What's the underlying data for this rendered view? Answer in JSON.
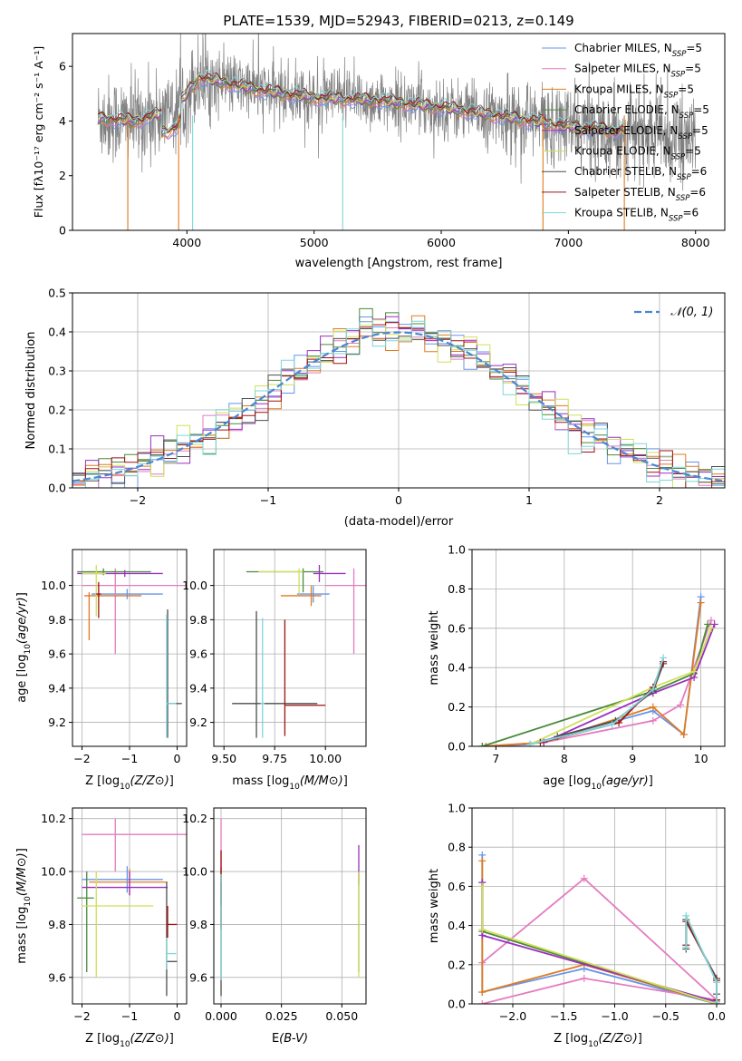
{
  "title": "PLATE=1539, MJD=52943, FIBERID=0213, z=0.149",
  "colors": {
    "Chabrier MILES": "#6495ed",
    "Salpeter MILES": "#e37cc0",
    "Kroupa MILES": "#e07b1f",
    "Chabrier ELODIE": "#4a8a3a",
    "Salpeter ELODIE": "#9a2fc0",
    "Kroupa ELODIE": "#cfe05a",
    "Chabrier STELIB": "#4d4d4d",
    "Salpeter STELIB": "#a01010",
    "Kroupa STELIB": "#7fd6d8",
    "gauss": "#4a86d6"
  },
  "chart_data": [
    {
      "id": "spectrum",
      "type": "line",
      "xlabel": "wavelength [Angstrom, rest frame]",
      "ylabel": "Flux [fλ10⁻¹⁷ erg cm⁻² s⁻¹ A⁻¹]",
      "xlim": [
        3100,
        8230
      ],
      "ylim": [
        0,
        7.2
      ],
      "xticks": [
        4000,
        5000,
        6000,
        7000,
        8000
      ],
      "yticks": [
        0,
        2,
        4,
        6
      ],
      "legend_position": "right",
      "legend": [
        {
          "label": "Chabrier MILES, N",
          "sub": "SSP",
          "suffix": "=5"
        },
        {
          "label": "Salpeter MILES, N",
          "sub": "SSP",
          "suffix": "=5"
        },
        {
          "label": "Kroupa MILES, N",
          "sub": "SSP",
          "suffix": "=5"
        },
        {
          "label": "Chabrier ELODIE, N",
          "sub": "SSP",
          "suffix": "=5"
        },
        {
          "label": "Salpeter ELODIE, N",
          "sub": "SSP",
          "suffix": "=5"
        },
        {
          "label": "Kroupa ELODIE, N",
          "sub": "SSP",
          "suffix": "=5"
        },
        {
          "label": "Chabrier STELIB, N",
          "sub": "SSP",
          "suffix": "=6"
        },
        {
          "label": "Salpeter STELIB, N",
          "sub": "SSP",
          "suffix": "=6"
        },
        {
          "label": "Kroupa STELIB, N",
          "sub": "SSP",
          "suffix": "=6"
        }
      ],
      "continuum_anchors": {
        "x": [
          3300,
          3600,
          3900,
          4100,
          4300,
          4600,
          5000,
          5500,
          6000,
          6500,
          7000,
          7500,
          8000
        ],
        "y": [
          4.1,
          4.0,
          4.4,
          5.6,
          5.4,
          5.1,
          4.85,
          4.75,
          4.5,
          4.15,
          3.8,
          3.6,
          3.35
        ]
      },
      "data_range": [
        3300,
        8000
      ],
      "model_range": [
        3300,
        7450
      ]
    },
    {
      "id": "residuals",
      "type": "histogram",
      "xlabel": "(data-model)/error",
      "ylabel": "Normed distribution",
      "xlim": [
        -2.5,
        2.5
      ],
      "ylim": [
        0,
        0.5
      ],
      "xticks": [
        -2,
        -1,
        0,
        1,
        2
      ],
      "yticks": [
        0,
        0.1,
        0.2,
        0.3,
        0.4,
        0.5
      ],
      "bin_width": 0.1,
      "series_name": "𝒩(0, 1)",
      "legend_position": "top-right"
    },
    {
      "id": "age_vs_Z",
      "type": "errorbar",
      "xlabel": "Z [log10(Z/Z⊙)]",
      "ylabel": "age  [log10(age/yr)]",
      "xlim": [
        -2.2,
        0.2
      ],
      "ylim": [
        9.06,
        10.21
      ],
      "xticks": [
        -2,
        -1,
        0
      ],
      "yticks": [
        9.2,
        9.4,
        9.6,
        9.8,
        10.0
      ],
      "points": [
        {
          "model": "Chabrier MILES",
          "x": -1.05,
          "xerr": [
            0.75,
            0.75
          ],
          "y": 9.95,
          "yerr": [
            0.03,
            0.03
          ]
        },
        {
          "model": "Salpeter MILES",
          "x": -1.3,
          "xerr": [
            0.7,
            1.5
          ],
          "y": 10.0,
          "yerr": [
            0.4,
            0.1
          ]
        },
        {
          "model": "Kroupa MILES",
          "x": -1.85,
          "xerr": [
            0.1,
            1.1
          ],
          "y": 9.94,
          "yerr": [
            0.26,
            0.02
          ]
        },
        {
          "model": "Chabrier ELODIE",
          "x": -1.55,
          "xerr": [
            0.55,
            1.0
          ],
          "y": 10.08,
          "yerr": [
            0.02,
            0.02
          ]
        },
        {
          "model": "Salpeter ELODIE",
          "x": -1.1,
          "xerr": [
            1.0,
            0.8
          ],
          "y": 10.07,
          "yerr": [
            0.02,
            0.02
          ]
        },
        {
          "model": "Kroupa ELODIE",
          "x": -1.7,
          "xerr": [
            0.3,
            0.2
          ],
          "y": 10.07,
          "yerr": [
            0.25,
            0.05
          ]
        },
        {
          "model": "Chabrier STELIB",
          "x": -0.2,
          "xerr": [
            0.0,
            0.3
          ],
          "y": 9.31,
          "yerr": [
            0.2,
            0.55
          ]
        },
        {
          "model": "Salpeter STELIB",
          "x": -1.65,
          "xerr": [
            0.05,
            0.05
          ],
          "y": 9.95,
          "yerr": [
            0.14,
            0.07
          ]
        },
        {
          "model": "Kroupa STELIB",
          "x": -0.22,
          "xerr": [
            0.0,
            0.2
          ],
          "y": 9.31,
          "yerr": [
            0.2,
            0.52
          ]
        }
      ]
    },
    {
      "id": "age_vs_mass",
      "type": "errorbar",
      "xlabel": "mass [log10(M/M⊙)]",
      "ylabel": "",
      "xlim": [
        9.45,
        10.2
      ],
      "ylim": [
        9.06,
        10.21
      ],
      "xticks": [
        9.5,
        9.75,
        10.0
      ],
      "yticks": [
        9.2,
        9.4,
        9.6,
        9.8,
        10.0
      ],
      "points": [
        {
          "model": "Chabrier MILES",
          "x": 9.94,
          "xerr": [
            0.08,
            0.08
          ],
          "y": 9.95,
          "yerr": [
            0.05,
            0.05
          ]
        },
        {
          "model": "Salpeter MILES",
          "x": 10.14,
          "xerr": [
            0.14,
            0.15
          ],
          "y": 10.0,
          "yerr": [
            0.4,
            0.1
          ]
        },
        {
          "model": "Kroupa MILES",
          "x": 9.93,
          "xerr": [
            0.15,
            0.05
          ],
          "y": 9.94,
          "yerr": [
            0.06,
            0.06
          ]
        },
        {
          "model": "Chabrier ELODIE",
          "x": 9.89,
          "xerr": [
            0.28,
            0.1
          ],
          "y": 10.08,
          "yerr": [
            0.12,
            0.02
          ]
        },
        {
          "model": "Salpeter ELODIE",
          "x": 9.97,
          "xerr": [
            0.03,
            0.13
          ],
          "y": 10.07,
          "yerr": [
            0.05,
            0.05
          ]
        },
        {
          "model": "Kroupa ELODIE",
          "x": 9.87,
          "xerr": [
            0.2,
            0.02
          ],
          "y": 10.08,
          "yerr": [
            0.13,
            0.02
          ]
        },
        {
          "model": "Chabrier STELIB",
          "x": 9.66,
          "xerr": [
            0.12,
            0.3
          ],
          "y": 9.31,
          "yerr": [
            0.2,
            0.54
          ]
        },
        {
          "model": "Salpeter STELIB",
          "x": 9.8,
          "xerr": [
            0.0,
            0.2
          ],
          "y": 9.3,
          "yerr": [
            0.18,
            0.5
          ]
        },
        {
          "model": "Kroupa STELIB",
          "x": 9.69,
          "xerr": [
            0.01,
            0.01
          ],
          "y": 9.31,
          "yerr": [
            0.2,
            0.5
          ]
        }
      ]
    },
    {
      "id": "weight_vs_age",
      "type": "line",
      "xlabel": "age  [log10(age/yr)]",
      "ylabel": "mass weight",
      "xlim": [
        6.65,
        10.35
      ],
      "ylim": [
        0,
        1.0
      ],
      "xticks": [
        7,
        8,
        9,
        10
      ],
      "yticks": [
        0.0,
        0.2,
        0.4,
        0.6,
        0.8,
        1.0
      ],
      "series": [
        {
          "model": "Chabrier MILES",
          "x": [
            6.8,
            7.5,
            9.3,
            9.75,
            10.0
          ],
          "y": [
            0.0,
            0.01,
            0.18,
            0.06,
            0.76
          ]
        },
        {
          "model": "Salpeter MILES",
          "x": [
            6.8,
            7.7,
            9.3,
            9.7,
            10.15
          ],
          "y": [
            0.0,
            0.02,
            0.13,
            0.21,
            0.64
          ]
        },
        {
          "model": "Kroupa MILES",
          "x": [
            6.85,
            7.7,
            9.3,
            9.75,
            10.0
          ],
          "y": [
            0.0,
            0.02,
            0.2,
            0.06,
            0.73
          ]
        },
        {
          "model": "Chabrier ELODIE",
          "x": [
            6.8,
            9.3,
            9.9,
            10.1
          ],
          "y": [
            0.0,
            0.28,
            0.37,
            0.62
          ]
        },
        {
          "model": "Salpeter ELODIE",
          "x": [
            7.7,
            9.3,
            9.9,
            10.2
          ],
          "y": [
            0.02,
            0.27,
            0.35,
            0.62
          ]
        },
        {
          "model": "Kroupa ELODIE",
          "x": [
            7.5,
            9.3,
            9.9,
            10.15
          ],
          "y": [
            0.01,
            0.3,
            0.38,
            0.6
          ]
        },
        {
          "model": "Chabrier STELIB",
          "x": [
            7.9,
            8.75,
            9.3,
            9.45
          ],
          "y": [
            0.05,
            0.13,
            0.28,
            0.42
          ]
        },
        {
          "model": "Salpeter STELIB",
          "x": [
            7.65,
            8.8,
            9.3,
            9.45
          ],
          "y": [
            0.02,
            0.12,
            0.3,
            0.43
          ]
        },
        {
          "model": "Kroupa STELIB",
          "x": [
            7.5,
            8.7,
            9.3,
            9.45
          ],
          "y": [
            0.01,
            0.11,
            0.29,
            0.45
          ]
        }
      ]
    },
    {
      "id": "mass_vs_Z",
      "type": "errorbar",
      "xlabel": "Z [log10(Z/Z⊙)]",
      "ylabel": "mass [log10(M/M⊙)]",
      "xlim": [
        -2.2,
        0.2
      ],
      "ylim": [
        9.5,
        10.24
      ],
      "xticks": [
        -2,
        -1,
        0
      ],
      "yticks": [
        9.6,
        9.8,
        10.0,
        10.2
      ],
      "points": [
        {
          "model": "Chabrier MILES",
          "x": -1.05,
          "xerr": [
            0.95,
            0.75
          ],
          "y": 9.97,
          "yerr": [
            0.05,
            0.05
          ]
        },
        {
          "model": "Salpeter MILES",
          "x": -1.3,
          "xerr": [
            0.7,
            1.5
          ],
          "y": 10.14,
          "yerr": [
            0.14,
            0.06
          ]
        },
        {
          "model": "Kroupa MILES",
          "x": -1.0,
          "xerr": [
            0.85,
            0.8
          ],
          "y": 9.96,
          "yerr": [
            0.05,
            0.05
          ]
        },
        {
          "model": "Chabrier ELODIE",
          "x": -1.9,
          "xerr": [
            0.2,
            0.15
          ],
          "y": 9.9,
          "yerr": [
            0.28,
            0.1
          ]
        },
        {
          "model": "Salpeter ELODIE",
          "x": -1.0,
          "xerr": [
            1.0,
            0.8
          ],
          "y": 9.94,
          "yerr": [
            0.03,
            0.06
          ]
        },
        {
          "model": "Kroupa ELODIE",
          "x": -1.7,
          "xerr": [
            0.3,
            1.2
          ],
          "y": 9.87,
          "yerr": [
            0.27,
            0.13
          ]
        },
        {
          "model": "Chabrier STELIB",
          "x": -0.22,
          "xerr": [
            0.0,
            0.22
          ],
          "y": 9.66,
          "yerr": [
            0.13,
            0.3
          ]
        },
        {
          "model": "Salpeter STELIB",
          "x": -0.2,
          "xerr": [
            0.0,
            0.2
          ],
          "y": 9.8,
          "yerr": [
            0.05,
            0.07
          ]
        },
        {
          "model": "Kroupa STELIB",
          "x": -0.22,
          "xerr": [
            0.0,
            0.2
          ],
          "y": 9.69,
          "yerr": [
            0.06,
            0.06
          ]
        }
      ]
    },
    {
      "id": "mass_vs_ebv",
      "type": "errorbar",
      "xlabel": "E(B-V)",
      "ylabel": "",
      "xlim": [
        -0.003,
        0.06
      ],
      "ylim": [
        9.5,
        10.24
      ],
      "xticks": [
        0.0,
        0.025,
        0.05
      ],
      "xticklabels": [
        "0.000",
        "0.025",
        "0.050"
      ],
      "yticks": [
        9.6,
        9.8,
        10.0,
        10.2
      ],
      "points": [
        {
          "model": "Chabrier MILES",
          "x": 0.0,
          "xerr": [
            0,
            0
          ],
          "y": 9.97,
          "yerr": [
            0.1,
            0.05
          ]
        },
        {
          "model": "Salpeter MILES",
          "x": 0.0,
          "xerr": [
            0,
            0
          ],
          "y": 10.14,
          "yerr": [
            0.14,
            0.06
          ]
        },
        {
          "model": "Kroupa MILES",
          "x": 0.0,
          "xerr": [
            0,
            0
          ],
          "y": 9.96,
          "yerr": [
            0.08,
            0.05
          ]
        },
        {
          "model": "Chabrier ELODIE",
          "x": 0.057,
          "xerr": [
            0,
            0
          ],
          "y": 9.9,
          "yerr": [
            0.28,
            0.1
          ]
        },
        {
          "model": "Salpeter ELODIE",
          "x": 0.057,
          "xerr": [
            0,
            0
          ],
          "y": 10.0,
          "yerr": [
            0.05,
            0.1
          ]
        },
        {
          "model": "Kroupa ELODIE",
          "x": 0.057,
          "xerr": [
            0,
            0
          ],
          "y": 9.87,
          "yerr": [
            0.27,
            0.13
          ]
        },
        {
          "model": "Chabrier STELIB",
          "x": 0.0,
          "xerr": [
            0,
            0
          ],
          "y": 9.66,
          "yerr": [
            0.13,
            0.3
          ]
        },
        {
          "model": "Salpeter STELIB",
          "x": 0.0,
          "xerr": [
            0,
            0
          ],
          "y": 9.8,
          "yerr": [
            0.02,
            0.28
          ]
        },
        {
          "model": "Kroupa STELIB",
          "x": 0.0,
          "xerr": [
            0,
            0
          ],
          "y": 9.69,
          "yerr": [
            0.1,
            0.3
          ]
        }
      ]
    },
    {
      "id": "weight_vs_Z",
      "type": "line",
      "xlabel": "Z [log10(Z/Z⊙)]",
      "ylabel": "mass weight",
      "xlim": [
        -2.4,
        0.08
      ],
      "ylim": [
        0,
        1.0
      ],
      "xticks": [
        -2.0,
        -1.5,
        -1.0,
        -0.5,
        0.0
      ],
      "yticks": [
        0.0,
        0.2,
        0.4,
        0.6,
        0.8,
        1.0
      ],
      "series": [
        {
          "model": "Chabrier MILES",
          "x": [
            -2.3,
            -2.3,
            -1.3,
            0.0,
            0.0
          ],
          "y": [
            0.76,
            0.06,
            0.18,
            0.0,
            0.01
          ]
        },
        {
          "model": "Salpeter MILES",
          "x": [
            -2.3,
            -1.3,
            0.0,
            -1.3,
            -2.3
          ],
          "y": [
            0.21,
            0.64,
            0.02,
            0.13,
            0.0
          ]
        },
        {
          "model": "Kroupa MILES",
          "x": [
            -2.3,
            -2.3,
            -1.3,
            0.0,
            0.0
          ],
          "y": [
            0.73,
            0.06,
            0.2,
            0.0,
            0.02
          ]
        },
        {
          "model": "Chabrier ELODIE",
          "x": [
            -2.3,
            -2.3,
            0.0
          ],
          "y": [
            0.62,
            0.37,
            0.0
          ]
        },
        {
          "model": "Salpeter ELODIE",
          "x": [
            -2.3,
            -2.3,
            0.0
          ],
          "y": [
            0.62,
            0.35,
            0.01
          ]
        },
        {
          "model": "Kroupa ELODIE",
          "x": [
            -2.3,
            -2.3,
            0.0
          ],
          "y": [
            0.6,
            0.38,
            0.0
          ]
        },
        {
          "model": "Chabrier STELIB",
          "x": [
            -0.3,
            -0.3,
            0.0,
            0.0
          ],
          "y": [
            0.28,
            0.42,
            0.13,
            0.05
          ]
        },
        {
          "model": "Salpeter STELIB",
          "x": [
            -0.3,
            -0.3,
            0.0,
            0.0
          ],
          "y": [
            0.3,
            0.43,
            0.12,
            0.02
          ]
        },
        {
          "model": "Kroupa STELIB",
          "x": [
            -0.3,
            -0.3,
            0.0,
            0.0
          ],
          "y": [
            0.29,
            0.45,
            0.11,
            0.01
          ]
        }
      ]
    }
  ]
}
